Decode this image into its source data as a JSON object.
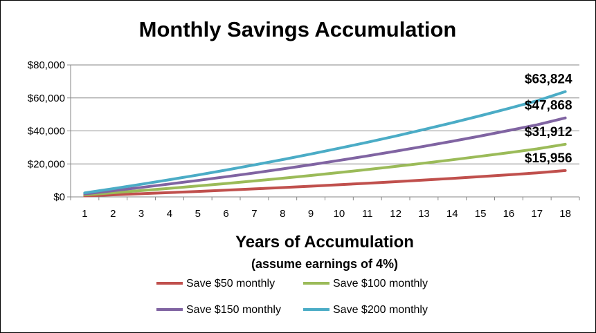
{
  "chart_data": {
    "type": "line",
    "title": "Monthly Savings Accumulation",
    "xlabel": "Years of Accumulation",
    "xlabel_sub": "(assume earnings of 4%)",
    "ylabel": "",
    "categories": [
      "1",
      "2",
      "3",
      "4",
      "5",
      "6",
      "7",
      "8",
      "9",
      "10",
      "11",
      "12",
      "13",
      "14",
      "15",
      "16",
      "17",
      "18"
    ],
    "ylim": [
      0,
      80000
    ],
    "yticks": [
      0,
      20000,
      40000,
      60000,
      80000
    ],
    "ytick_labels": [
      "$0",
      "$20,000",
      "$40,000",
      "$60,000",
      "$80,000"
    ],
    "grid": "horizontal",
    "legend_position": "bottom",
    "series": [
      {
        "name": "Save $50 monthly",
        "color": "#c0504d",
        "values": [
          612,
          1250,
          1914,
          2604,
          3323,
          4070,
          4848,
          5657,
          6498,
          7373,
          8284,
          9230,
          10215,
          11239,
          12304,
          13412,
          14564,
          15956
        ],
        "end_label": "$15,956"
      },
      {
        "name": "Save $100 monthly",
        "color": "#9bbb59",
        "values": [
          1224,
          2500,
          3828,
          5208,
          6646,
          8140,
          9696,
          11314,
          12996,
          14746,
          16568,
          18460,
          20430,
          22478,
          24608,
          26824,
          29128,
          31912
        ],
        "end_label": "$31,912"
      },
      {
        "name": "Save $150 monthly",
        "color": "#8064a2",
        "values": [
          1836,
          3750,
          5742,
          7812,
          9969,
          12210,
          14544,
          16971,
          19494,
          22119,
          24852,
          27690,
          30645,
          33717,
          36912,
          40236,
          43692,
          47868
        ],
        "end_label": "$47,868"
      },
      {
        "name": "Save $200 monthly",
        "color": "#4bacc6",
        "values": [
          2448,
          5000,
          7656,
          10416,
          13292,
          16280,
          19392,
          22628,
          25992,
          29492,
          33136,
          36920,
          40860,
          44956,
          49216,
          53648,
          58256,
          63824
        ],
        "end_label": "$63,824"
      }
    ]
  }
}
